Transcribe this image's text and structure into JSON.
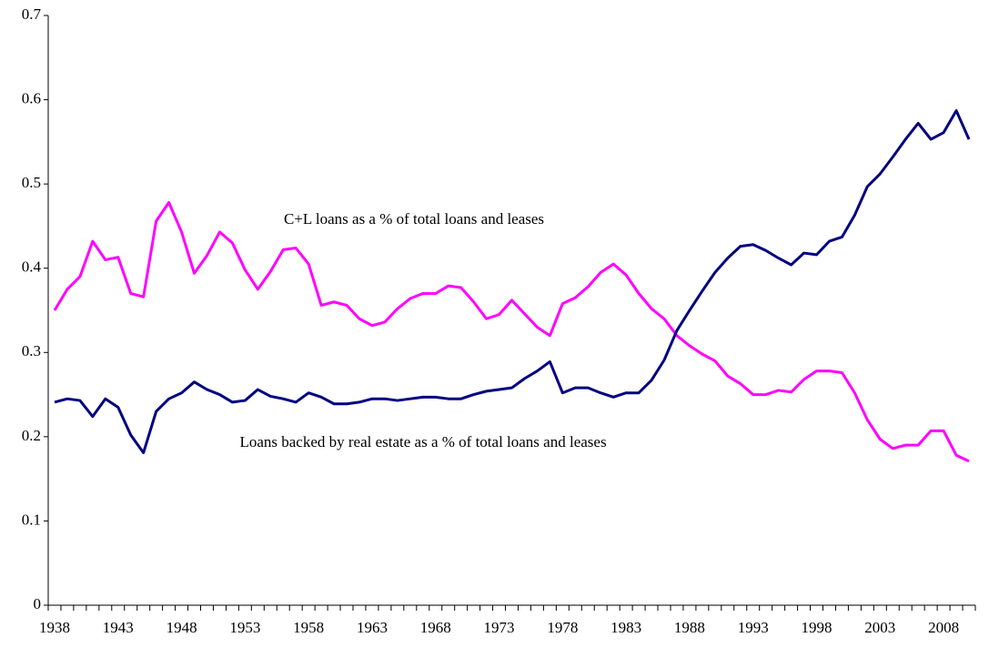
{
  "chart_data": {
    "type": "line",
    "x": [
      1938,
      1939,
      1940,
      1941,
      1942,
      1943,
      1944,
      1945,
      1946,
      1947,
      1948,
      1949,
      1950,
      1951,
      1952,
      1953,
      1954,
      1955,
      1956,
      1957,
      1958,
      1959,
      1960,
      1961,
      1962,
      1963,
      1964,
      1965,
      1966,
      1967,
      1968,
      1969,
      1970,
      1971,
      1972,
      1973,
      1974,
      1975,
      1976,
      1977,
      1978,
      1979,
      1980,
      1981,
      1982,
      1983,
      1984,
      1985,
      1986,
      1987,
      1988,
      1989,
      1990,
      1991,
      1992,
      1993,
      1994,
      1995,
      1996,
      1997,
      1998,
      1999,
      2000,
      2001,
      2002,
      2003,
      2004,
      2005,
      2006,
      2007,
      2008,
      2009,
      2010
    ],
    "series": [
      {
        "color": "#ff00ff",
        "values": [
          0.35,
          0.375,
          0.39,
          0.432,
          0.41,
          0.413,
          0.37,
          0.366,
          0.456,
          0.478,
          0.443,
          0.394,
          0.415,
          0.443,
          0.43,
          0.398,
          0.375,
          0.396,
          0.422,
          0.424,
          0.405,
          0.356,
          0.36,
          0.356,
          0.34,
          0.332,
          0.336,
          0.352,
          0.364,
          0.37,
          0.37,
          0.379,
          0.377,
          0.36,
          0.34,
          0.345,
          0.362,
          0.346,
          0.33,
          0.32,
          0.358,
          0.365,
          0.378,
          0.395,
          0.405,
          0.392,
          0.37,
          0.352,
          0.34,
          0.32,
          0.308,
          0.298,
          0.29,
          0.272,
          0.263,
          0.25,
          0.25,
          0.255,
          0.253,
          0.268,
          0.278,
          0.278,
          0.276,
          0.252,
          0.22,
          0.197,
          0.186,
          0.19,
          0.19,
          0.207,
          0.207,
          0.178,
          0.171
        ]
      },
      {
        "color": "#000080",
        "values": [
          0.241,
          0.245,
          0.243,
          0.224,
          0.245,
          0.235,
          0.202,
          0.181,
          0.23,
          0.245,
          0.252,
          0.265,
          0.256,
          0.25,
          0.241,
          0.243,
          0.256,
          0.248,
          0.245,
          0.241,
          0.252,
          0.247,
          0.239,
          0.239,
          0.241,
          0.245,
          0.245,
          0.243,
          0.245,
          0.247,
          0.247,
          0.245,
          0.245,
          0.25,
          0.254,
          0.256,
          0.258,
          0.269,
          0.278,
          0.289,
          0.252,
          0.258,
          0.258,
          0.252,
          0.247,
          0.252,
          0.252,
          0.267,
          0.291,
          0.326,
          0.35,
          0.373,
          0.395,
          0.412,
          0.426,
          0.428,
          0.421,
          0.412,
          0.404,
          0.418,
          0.416,
          0.432,
          0.437,
          0.463,
          0.497,
          0.512,
          0.532,
          0.553,
          0.572,
          0.553,
          0.561,
          0.587,
          0.553
        ]
      }
    ],
    "annotations": [
      "C+L loans as a % of total loans and leases",
      "Loans backed by real estate as a % of total loans and leases"
    ],
    "xlim": [
      1937.5,
      2010.5
    ],
    "xticks": [
      1938,
      1943,
      1948,
      1953,
      1958,
      1963,
      1968,
      1973,
      1978,
      1983,
      1988,
      1993,
      1998,
      2003,
      2008
    ],
    "ylim": [
      0,
      0.7
    ],
    "yticks": [
      0,
      0.1,
      0.2,
      0.3,
      0.4,
      0.5,
      0.6,
      0.7
    ],
    "grid": false
  }
}
